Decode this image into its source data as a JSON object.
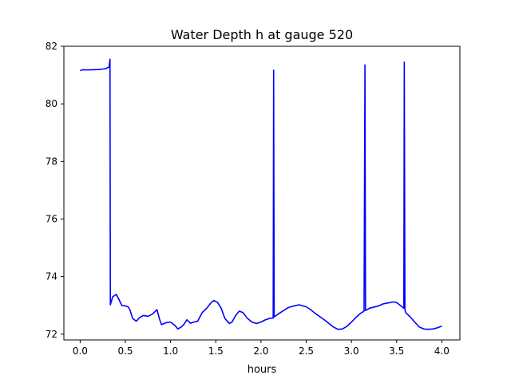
{
  "chart_data": {
    "type": "line",
    "title": "Water Depth h at gauge 520",
    "xlabel": "hours",
    "ylabel": "",
    "xlim": [
      -0.18,
      4.2
    ],
    "ylim": [
      71.8,
      82.0
    ],
    "xticks": [
      0.0,
      0.5,
      1.0,
      1.5,
      2.0,
      2.5,
      3.0,
      3.5,
      4.0
    ],
    "xtick_labels": [
      "0.0",
      "0.5",
      "1.0",
      "1.5",
      "2.0",
      "2.5",
      "3.0",
      "3.5",
      "4.0"
    ],
    "yticks": [
      72,
      74,
      76,
      78,
      80,
      82
    ],
    "ytick_labels": [
      "72",
      "74",
      "76",
      "78",
      "80",
      "82"
    ],
    "grid": false,
    "legend": "none",
    "series": [
      {
        "color": "#0000ff",
        "points": [
          [
            0.0,
            81.15
          ],
          [
            0.02,
            81.18
          ],
          [
            0.1,
            81.18
          ],
          [
            0.2,
            81.19
          ],
          [
            0.28,
            81.22
          ],
          [
            0.32,
            81.28
          ],
          [
            0.33,
            81.55
          ],
          [
            0.334,
            73.02
          ],
          [
            0.36,
            73.3
          ],
          [
            0.4,
            73.38
          ],
          [
            0.43,
            73.2
          ],
          [
            0.46,
            73.0
          ],
          [
            0.5,
            72.98
          ],
          [
            0.53,
            72.95
          ],
          [
            0.55,
            72.85
          ],
          [
            0.58,
            72.55
          ],
          [
            0.62,
            72.45
          ],
          [
            0.66,
            72.58
          ],
          [
            0.7,
            72.65
          ],
          [
            0.75,
            72.62
          ],
          [
            0.8,
            72.7
          ],
          [
            0.85,
            72.85
          ],
          [
            0.88,
            72.5
          ],
          [
            0.9,
            72.33
          ],
          [
            0.95,
            72.4
          ],
          [
            1.0,
            72.42
          ],
          [
            1.05,
            72.3
          ],
          [
            1.08,
            72.18
          ],
          [
            1.12,
            72.25
          ],
          [
            1.15,
            72.35
          ],
          [
            1.18,
            72.5
          ],
          [
            1.22,
            72.38
          ],
          [
            1.26,
            72.42
          ],
          [
            1.3,
            72.45
          ],
          [
            1.35,
            72.75
          ],
          [
            1.4,
            72.9
          ],
          [
            1.45,
            73.1
          ],
          [
            1.48,
            73.17
          ],
          [
            1.52,
            73.1
          ],
          [
            1.56,
            72.9
          ],
          [
            1.6,
            72.55
          ],
          [
            1.65,
            72.37
          ],
          [
            1.68,
            72.42
          ],
          [
            1.72,
            72.65
          ],
          [
            1.76,
            72.8
          ],
          [
            1.8,
            72.75
          ],
          [
            1.85,
            72.55
          ],
          [
            1.9,
            72.42
          ],
          [
            1.95,
            72.37
          ],
          [
            2.0,
            72.42
          ],
          [
            2.05,
            72.5
          ],
          [
            2.1,
            72.55
          ],
          [
            2.135,
            72.56
          ],
          [
            2.14,
            81.17
          ],
          [
            2.146,
            72.6
          ],
          [
            2.2,
            72.72
          ],
          [
            2.25,
            72.82
          ],
          [
            2.3,
            72.92
          ],
          [
            2.35,
            72.97
          ],
          [
            2.42,
            73.02
          ],
          [
            2.5,
            72.95
          ],
          [
            2.55,
            72.85
          ],
          [
            2.6,
            72.72
          ],
          [
            2.7,
            72.5
          ],
          [
            2.8,
            72.25
          ],
          [
            2.85,
            72.17
          ],
          [
            2.9,
            72.18
          ],
          [
            2.95,
            72.27
          ],
          [
            3.0,
            72.42
          ],
          [
            3.05,
            72.58
          ],
          [
            3.1,
            72.72
          ],
          [
            3.14,
            72.8
          ],
          [
            3.15,
            81.35
          ],
          [
            3.156,
            72.82
          ],
          [
            3.2,
            72.9
          ],
          [
            3.3,
            72.98
          ],
          [
            3.35,
            73.05
          ],
          [
            3.4,
            73.08
          ],
          [
            3.46,
            73.12
          ],
          [
            3.5,
            73.1
          ],
          [
            3.56,
            72.95
          ],
          [
            3.58,
            72.9
          ],
          [
            3.585,
            81.45
          ],
          [
            3.592,
            72.85
          ],
          [
            3.6,
            72.75
          ],
          [
            3.65,
            72.6
          ],
          [
            3.7,
            72.42
          ],
          [
            3.75,
            72.25
          ],
          [
            3.8,
            72.18
          ],
          [
            3.85,
            72.17
          ],
          [
            3.9,
            72.18
          ],
          [
            3.95,
            72.22
          ],
          [
            4.0,
            72.28
          ]
        ]
      }
    ]
  }
}
